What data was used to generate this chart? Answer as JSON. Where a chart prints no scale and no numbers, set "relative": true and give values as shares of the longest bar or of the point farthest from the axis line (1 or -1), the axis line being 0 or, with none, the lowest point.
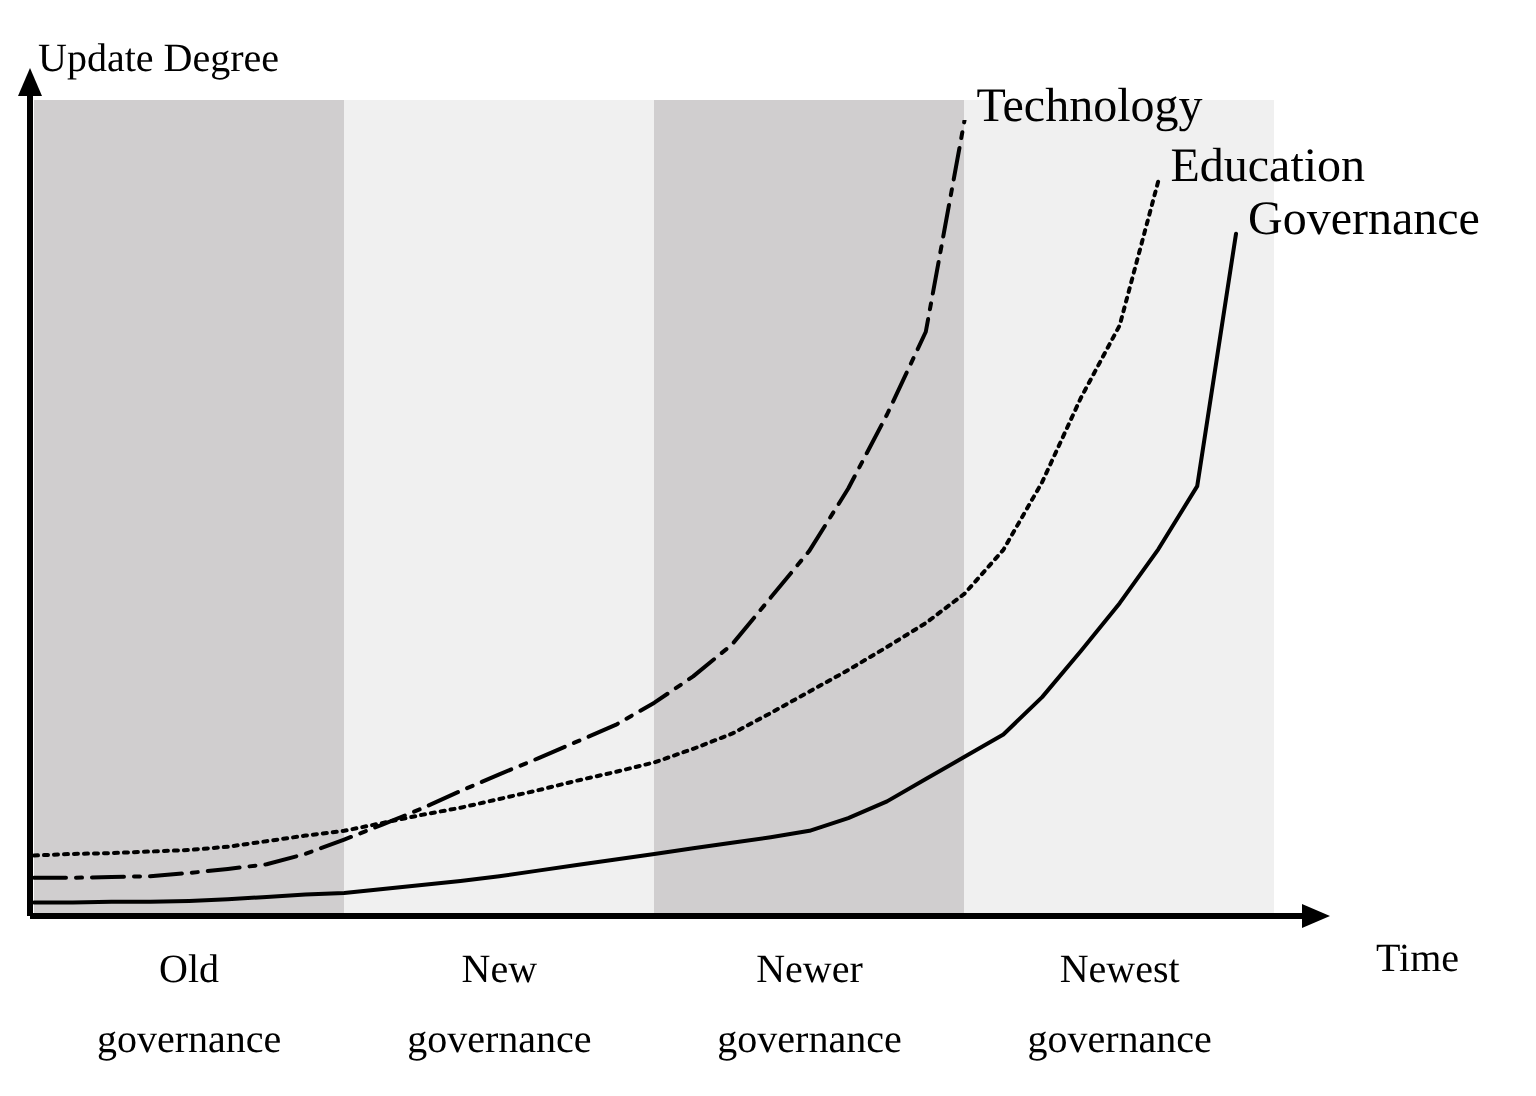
{
  "chart_data": {
    "type": "line",
    "relative": true,
    "xlabel": "Time",
    "ylabel": "Update Degree",
    "legend": false,
    "marker": "none",
    "categories": [
      null,
      null,
      null,
      null,
      "Old governance",
      null,
      null,
      null,
      null,
      null,
      null,
      null,
      "New governance",
      null,
      null,
      null,
      null,
      null,
      null,
      null,
      "Newer governance",
      null,
      null,
      null,
      null,
      null,
      null,
      null,
      "Newest governance",
      null,
      null,
      null
    ],
    "series": [
      {
        "name": "Technology",
        "color": "#000000",
        "line_style": "dashed",
        "values": [
          0.048,
          0.048,
          0.049,
          0.05,
          0.054,
          0.059,
          0.065,
          0.078,
          0.096,
          0.115,
          0.135,
          0.157,
          0.178,
          0.198,
          0.219,
          0.24,
          0.268,
          0.301,
          0.341,
          0.4,
          0.459,
          0.537,
          0.63,
          0.734,
          1,
          null,
          null,
          null,
          null,
          null,
          null,
          null
        ]
      },
      {
        "name": "Education",
        "color": "#000000",
        "line_style": "dotted",
        "values": [
          0.076,
          0.078,
          0.079,
          0.081,
          0.083,
          0.087,
          0.094,
          0.101,
          0.107,
          0.117,
          0.127,
          0.136,
          0.147,
          0.158,
          0.17,
          0.181,
          0.193,
          0.21,
          0.229,
          0.255,
          0.282,
          0.309,
          0.338,
          0.368,
          0.405,
          0.46,
          0.545,
          0.651,
          0.742,
          0.924,
          null,
          null
        ]
      },
      {
        "name": "Governance",
        "color": "#000000",
        "line_style": "solid",
        "values": [
          0.017,
          0.017,
          0.018,
          0.018,
          0.019,
          0.021,
          0.024,
          0.027,
          0.029,
          0.034,
          0.039,
          0.044,
          0.05,
          0.057,
          0.064,
          0.071,
          0.078,
          0.085,
          0.092,
          0.099,
          0.107,
          0.123,
          0.144,
          0.172,
          0.2,
          0.228,
          0.275,
          0.333,
          0.393,
          0.461,
          0.54,
          0.857
        ]
      }
    ]
  }
}
